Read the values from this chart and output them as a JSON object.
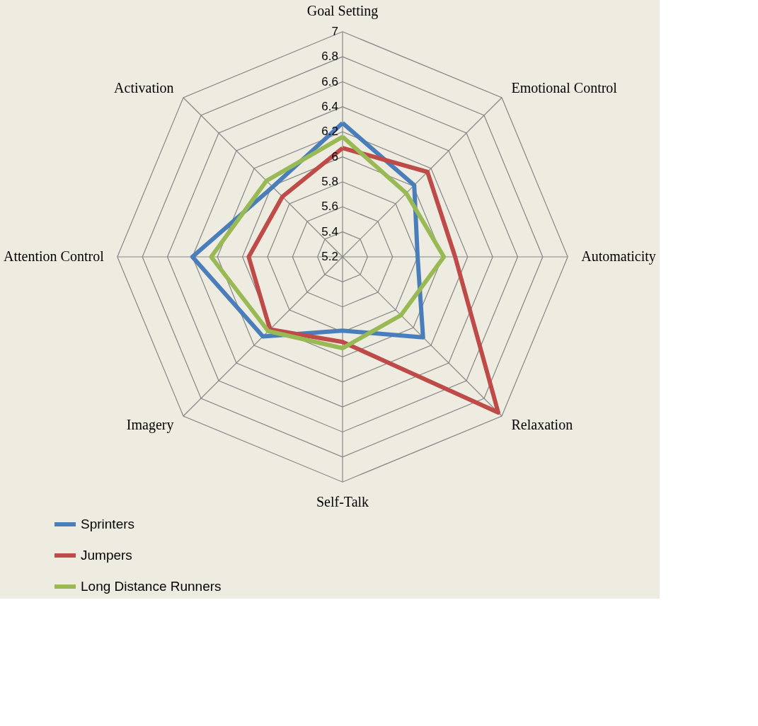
{
  "chart_data": {
    "type": "radar",
    "categories": [
      "Goal Setting",
      "Emotional Control",
      "Automaticity",
      "Relaxation",
      "Self-Talk",
      "Imagery",
      "Attention Control",
      "Activation"
    ],
    "series": [
      {
        "name": "Sprinters",
        "color": "#4a7ebb",
        "values": [
          6.27,
          6.01,
          5.8,
          6.11,
          5.79,
          6.1,
          6.4,
          5.99
        ]
      },
      {
        "name": "Jumpers",
        "color": "#be4b48",
        "values": [
          6.07,
          6.16,
          6.1,
          6.96,
          5.88,
          6.02,
          5.95,
          5.88
        ]
      },
      {
        "name": "Long Distance Runners",
        "color": "#98b954",
        "values": [
          6.16,
          5.92,
          6.01,
          5.86,
          5.93,
          6.04,
          6.25,
          6.06
        ]
      }
    ],
    "ylim": [
      5.2,
      7
    ],
    "yticks": [
      5.2,
      5.4,
      5.6,
      5.8,
      6,
      6.2,
      6.4,
      6.6,
      6.8,
      7
    ],
    "grid": true,
    "legend": "bottom"
  }
}
